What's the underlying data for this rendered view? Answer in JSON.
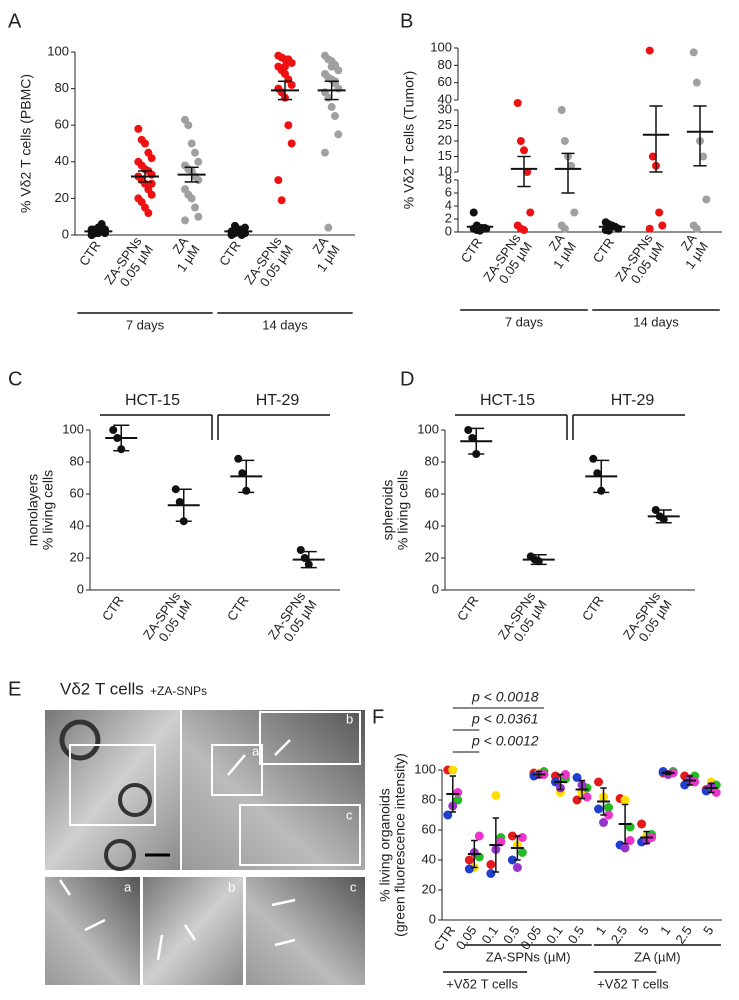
{
  "chart_data": [
    {
      "type": "dotplot",
      "panel": "A",
      "ylabel": [
        "% Vδ2 T cells (PBMC)"
      ],
      "categories": [
        [
          "CTR"
        ],
        [
          "ZA-SPNs",
          "0.05 µM"
        ],
        [
          "ZA",
          "1 µM"
        ],
        [
          "CTR"
        ],
        [
          "ZA-SPNs",
          "0.05 µM"
        ],
        [
          "ZA",
          "1 µM"
        ]
      ],
      "colors": [
        "#111111",
        "#ee1111",
        "#a0a0a0",
        "#111111",
        "#ee1111",
        "#a0a0a0"
      ],
      "values": [
        [
          0,
          1,
          1,
          2,
          2,
          3,
          3,
          4,
          5,
          1,
          0,
          2,
          4,
          6,
          3,
          2
        ],
        [
          58,
          52,
          50,
          45,
          42,
          40,
          38,
          36,
          35,
          33,
          32,
          30,
          28,
          25,
          22,
          20,
          18,
          15,
          12,
          28
        ],
        [
          63,
          60,
          50,
          45,
          40,
          38,
          36,
          35,
          32,
          30,
          25,
          22,
          20,
          15,
          10,
          8
        ],
        [
          0,
          1,
          2,
          3,
          4,
          1,
          2,
          3,
          0,
          1,
          2,
          5
        ],
        [
          98,
          97,
          96,
          95,
          94,
          92,
          90,
          88,
          85,
          82,
          80,
          78,
          75,
          60,
          50,
          30,
          19,
          92,
          96
        ],
        [
          98,
          96,
          95,
          93,
          90,
          88,
          86,
          85,
          83,
          80,
          78,
          75,
          70,
          65,
          55,
          45,
          4,
          92,
          84
        ]
      ],
      "means": [
        2,
        32,
        33,
        2,
        79,
        79
      ],
      "errors": [
        1,
        3,
        4,
        1,
        5,
        5
      ],
      "ylim": [
        0,
        100
      ],
      "yticks": [
        0,
        20,
        40,
        60,
        80,
        100
      ],
      "groups": [
        {
          "label": "7 days"
        },
        {
          "label": "14 days"
        }
      ]
    },
    {
      "type": "dotplot",
      "panel": "B",
      "ylabel": [
        "% Vδ2 T cells (Tumor)"
      ],
      "categories": [
        [
          "CTR"
        ],
        [
          "ZA-SPNs",
          "0.05 µM"
        ],
        [
          "ZA",
          "1 µM"
        ],
        [
          "CTR"
        ],
        [
          "ZA-SPNs",
          "0.05 µM"
        ],
        [
          "ZA",
          "1 µM"
        ]
      ],
      "colors": [
        "#111111",
        "#ee1111",
        "#a0a0a0",
        "#111111",
        "#ee1111",
        "#a0a0a0"
      ],
      "values": [
        [
          3,
          1,
          0.5,
          0.5,
          0.5,
          0.5,
          0.3,
          0.2
        ],
        [
          37,
          20,
          17,
          10,
          3,
          1,
          0.5,
          0.3
        ],
        [
          30,
          20,
          15,
          12,
          3,
          1,
          0.5
        ],
        [
          1.5,
          1.2,
          1,
          0.8,
          0.5,
          0.3,
          0.2
        ],
        [
          97,
          15,
          12,
          3,
          1,
          0.5
        ],
        [
          95,
          60,
          20,
          15,
          5,
          1,
          0.5
        ]
      ],
      "means": [
        0.8,
        11,
        11,
        0.8,
        22,
        23
      ],
      "errors": [
        0.3,
        4,
        5,
        0.3,
        12,
        11
      ],
      "y_segments": [
        {
          "ylim": [
            0,
            8
          ],
          "yticks": [
            0,
            2,
            4,
            6,
            8
          ]
        },
        {
          "ylim": [
            10,
            30
          ],
          "yticks": [
            10,
            15,
            20,
            25,
            30
          ]
        },
        {
          "ylim": [
            40,
            100
          ],
          "yticks": [
            40,
            60,
            80,
            100
          ]
        }
      ],
      "groups": [
        {
          "label": "7 days"
        },
        {
          "label": "14 days"
        }
      ]
    },
    {
      "type": "dotplot",
      "panel": "C",
      "ylabel": [
        "monolayers",
        "% living cells"
      ],
      "categories": [
        [
          "CTR"
        ],
        [
          "ZA-SPNs",
          "0.05 µM"
        ],
        [
          "CTR"
        ],
        [
          "ZA-SPNs",
          "0.05 µM"
        ]
      ],
      "colors": [
        "#111111",
        "#111111",
        "#111111",
        "#111111"
      ],
      "values": [
        [
          100,
          95,
          88
        ],
        [
          63,
          55,
          43
        ],
        [
          82,
          73,
          62
        ],
        [
          25,
          20,
          16
        ]
      ],
      "means": [
        95,
        53,
        71,
        19
      ],
      "errors": [
        8,
        10,
        10,
        5
      ],
      "ylim": [
        0,
        100
      ],
      "yticks": [
        0,
        20,
        40,
        60,
        80,
        100
      ],
      "brackets": [
        {
          "label": "HCT-15"
        },
        {
          "label": "HT-29"
        }
      ]
    },
    {
      "type": "dotplot",
      "panel": "D",
      "ylabel": [
        "spheroids",
        "% living cells"
      ],
      "categories": [
        [
          "CTR"
        ],
        [
          "ZA-SPNs",
          "0.05 µM"
        ],
        [
          "CTR"
        ],
        [
          "ZA-SPNs",
          "0.05 µM"
        ]
      ],
      "colors": [
        "#111111",
        "#111111",
        "#111111",
        "#111111"
      ],
      "values": [
        [
          100,
          95,
          85
        ],
        [
          21,
          19,
          18
        ],
        [
          82,
          73,
          62
        ],
        [
          50,
          46,
          44
        ]
      ],
      "means": [
        93,
        19,
        71,
        46
      ],
      "errors": [
        8,
        3,
        10,
        4
      ],
      "ylim": [
        0,
        100
      ],
      "yticks": [
        0,
        20,
        40,
        60,
        80,
        100
      ],
      "brackets": [
        {
          "label": "HCT-15"
        },
        {
          "label": "HT-29"
        }
      ]
    },
    {
      "type": "dotplot",
      "panel": "F",
      "ylabel": [
        "% living organoids",
        "(green fluorescence intensity)"
      ],
      "categories": [
        [
          "CTR"
        ],
        [
          "0.05"
        ],
        [
          "0.1"
        ],
        [
          "0.5"
        ],
        [
          "0.05"
        ],
        [
          "0.1"
        ],
        [
          "0.5"
        ],
        [
          "1"
        ],
        [
          "2.5"
        ],
        [
          "5"
        ],
        [
          "1"
        ],
        [
          "2.5"
        ],
        [
          "5"
        ]
      ],
      "point_colors": [
        "#e41a1c",
        "#ffdd00",
        "#22bb22",
        "#1f3fcc",
        "#9933cc",
        "#ee33cc"
      ],
      "values": [
        [
          100,
          100,
          80,
          70,
          76,
          85
        ],
        [
          40,
          35,
          42,
          34,
          45,
          56
        ],
        [
          37,
          83,
          55,
          31,
          47,
          52
        ],
        [
          56,
          50,
          45,
          40,
          35,
          55
        ],
        [
          98,
          98,
          99,
          96,
          97,
          97
        ],
        [
          96,
          85,
          94,
          92,
          88,
          97
        ],
        [
          80,
          85,
          88,
          95,
          90,
          82
        ],
        [
          92,
          82,
          75,
          74,
          65,
          70
        ],
        [
          81,
          80,
          62,
          50,
          48,
          53
        ],
        [
          64,
          56,
          57,
          52,
          53,
          55
        ],
        [
          98,
          97,
          99,
          99,
          97,
          98
        ],
        [
          96,
          92,
          96,
          90,
          94,
          92
        ],
        [
          87,
          92,
          90,
          86,
          89,
          85
        ]
      ],
      "means": [
        84,
        44,
        50,
        48,
        97,
        92,
        87,
        79,
        64,
        55,
        98,
        93,
        88
      ],
      "errors": [
        12,
        9,
        18,
        8,
        2,
        5,
        6,
        9,
        13,
        4,
        1,
        3,
        3
      ],
      "ylim": [
        0,
        100
      ],
      "yticks": [
        0,
        20,
        40,
        60,
        80,
        100
      ],
      "annotations": [
        {
          "text": "p < 0.0018"
        },
        {
          "text": "p < 0.0361"
        },
        {
          "text": "p < 0.0012"
        }
      ],
      "groups": [
        {
          "label": "ZA-SPNs (µM)"
        },
        {
          "label": "ZA (µM)"
        },
        {
          "label": "+Vδ2 T cells"
        },
        {
          "label": "+Vδ2 T cells"
        }
      ]
    }
  ],
  "panel_e": {
    "letter": "E",
    "title": "Vδ2 T cells",
    "title_suffix": "+ZA-SNPs",
    "insets": [
      "a",
      "b",
      "c",
      "a",
      "b",
      "c"
    ]
  }
}
